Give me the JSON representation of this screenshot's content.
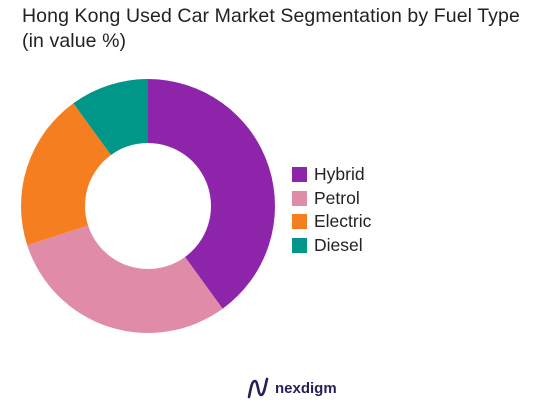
{
  "chart_data": {
    "type": "pie",
    "subtype": "donut",
    "title": "Hong Kong Used Car Market Segmentation by Fuel Type (in value %)",
    "categories": [
      "Hybrid",
      "Petrol",
      "Electric",
      "Diesel"
    ],
    "values": [
      40,
      30,
      20,
      10
    ],
    "colors": [
      "#8e24aa",
      "#e08ca8",
      "#f57f20",
      "#009688"
    ],
    "legend": "right",
    "start_angle_deg": 0,
    "direction": "clockwise"
  },
  "branding": {
    "logo_text": "nexdigm",
    "logo_icon": "nexdigm-logo-icon",
    "logo_color": "#2b1d59"
  }
}
